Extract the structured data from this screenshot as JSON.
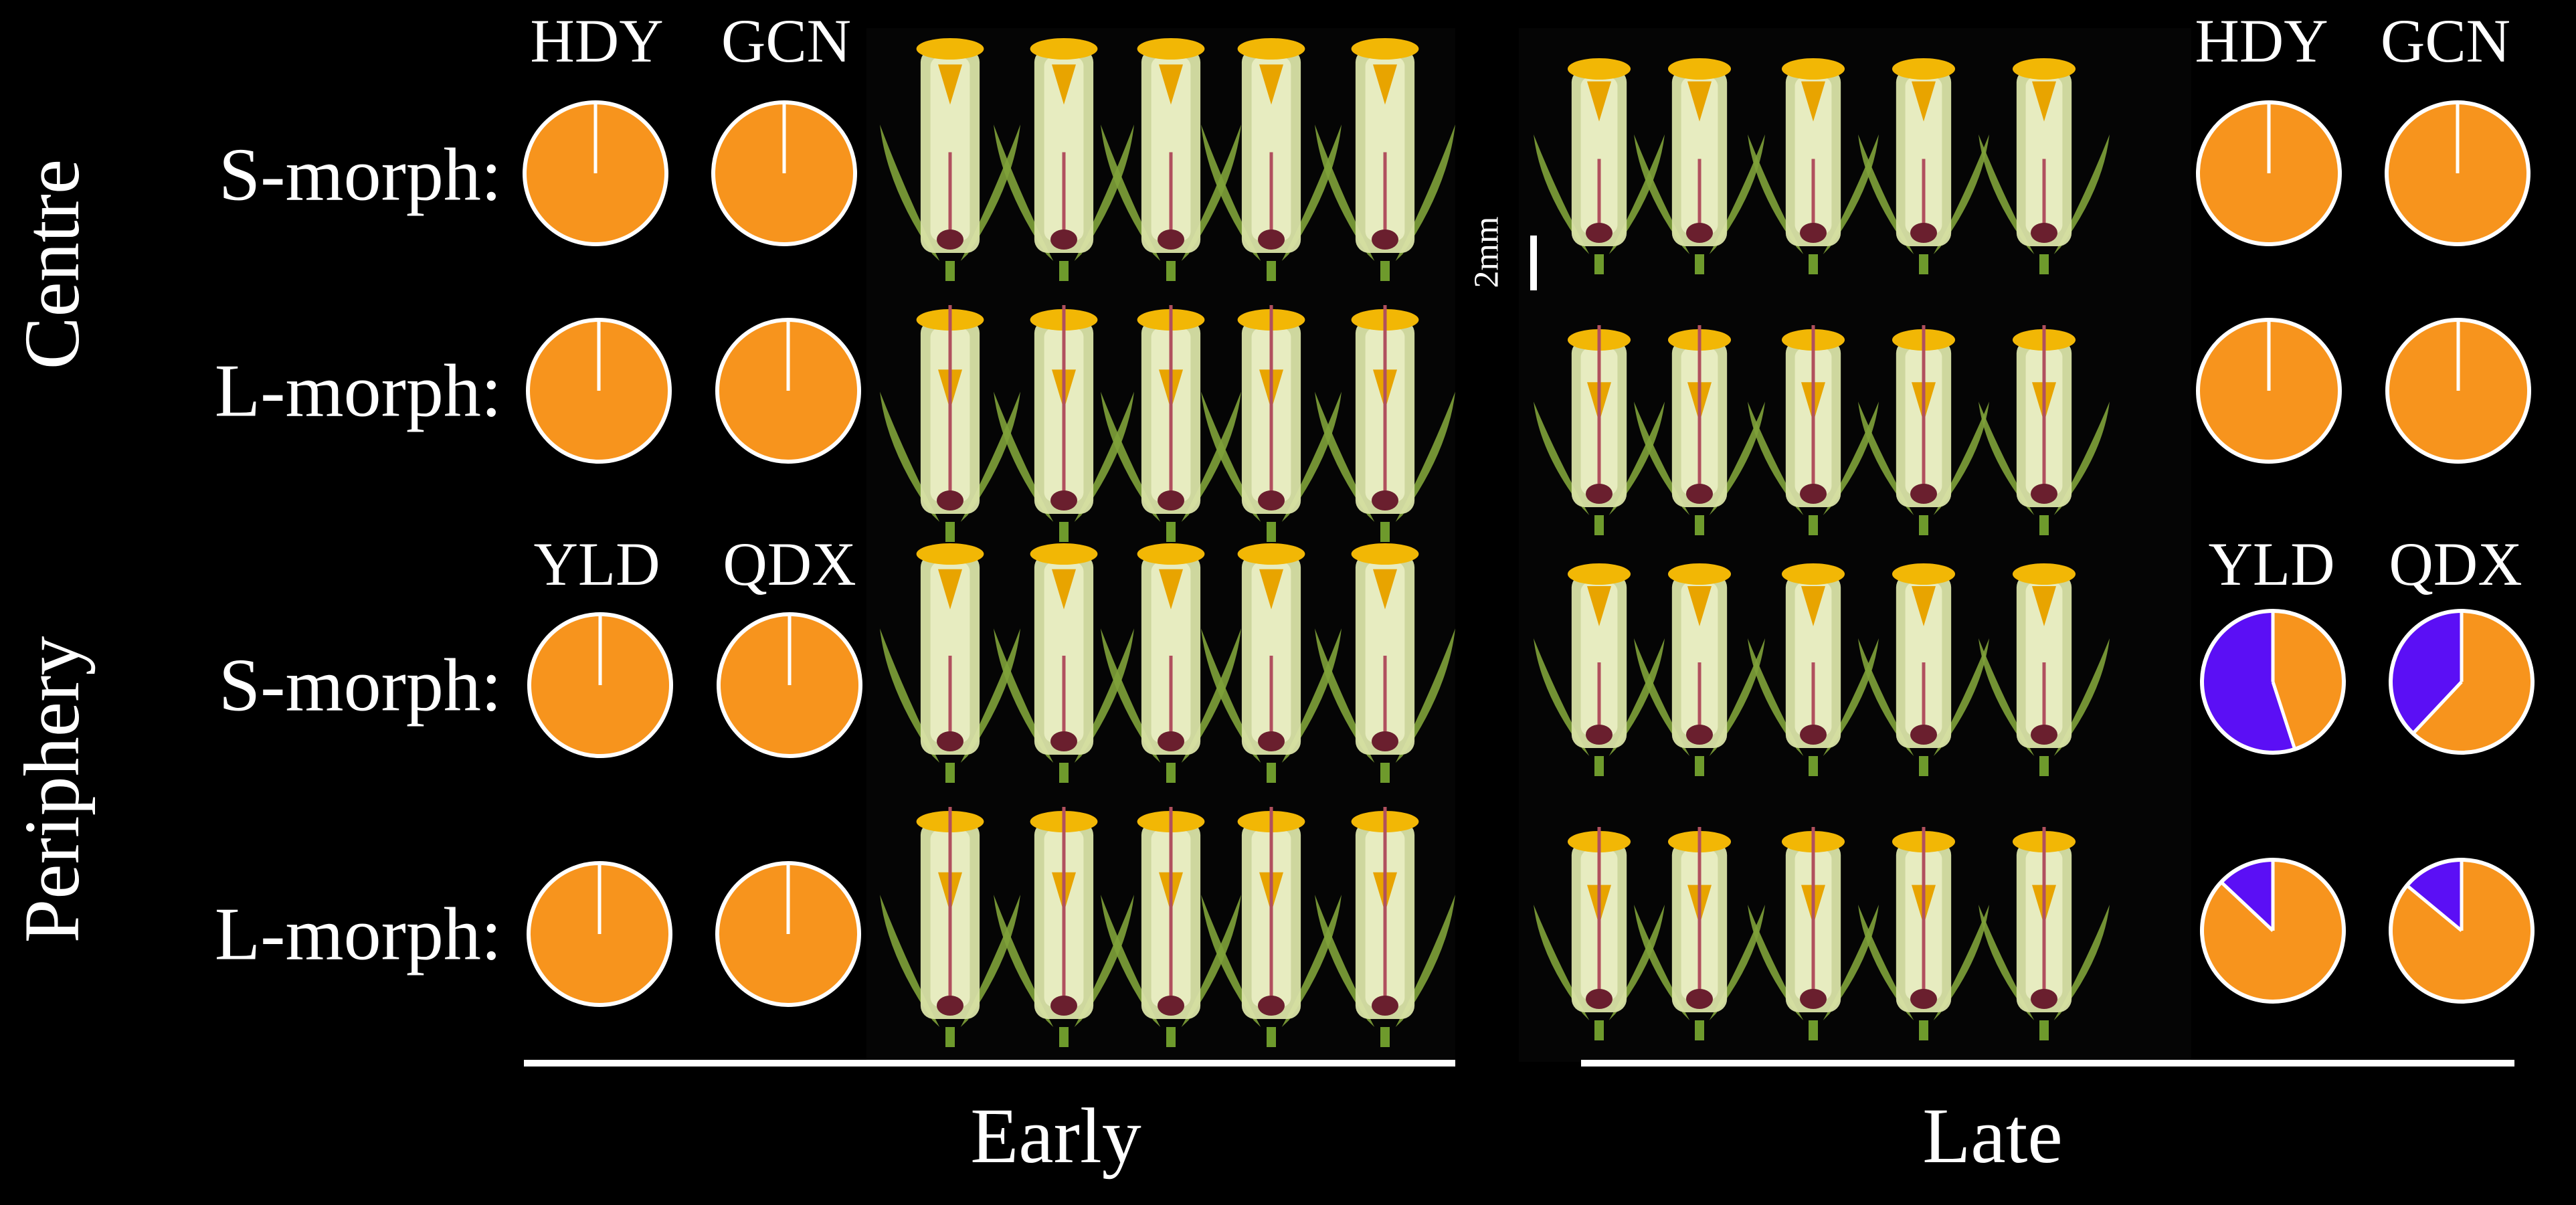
{
  "row_groups": [
    "Centre",
    "Periphery"
  ],
  "morphs": [
    "S-morph:",
    "L-morph:"
  ],
  "site_labels": {
    "centre": [
      "HDY",
      "GCN"
    ],
    "periphery": [
      "YLD",
      "QDX"
    ]
  },
  "phases": [
    "Early",
    "Late"
  ],
  "scale_label": "2mm",
  "colors": {
    "orange": "#F7941D",
    "blue": "#5B0FF5",
    "background": "#000000",
    "outline": "#FFFFFF"
  },
  "chart_data": {
    "type": "pie",
    "panels": [
      {
        "group": "Centre",
        "morph": "S-morph:",
        "phase": "Early",
        "site": "HDY",
        "values": [
          1.0,
          0.0
        ]
      },
      {
        "group": "Centre",
        "morph": "S-morph:",
        "phase": "Early",
        "site": "GCN",
        "values": [
          1.0,
          0.0
        ]
      },
      {
        "group": "Centre",
        "morph": "L-morph:",
        "phase": "Early",
        "site": "HDY",
        "values": [
          1.0,
          0.0
        ]
      },
      {
        "group": "Centre",
        "morph": "L-morph:",
        "phase": "Early",
        "site": "GCN",
        "values": [
          1.0,
          0.0
        ]
      },
      {
        "group": "Periphery",
        "morph": "S-morph:",
        "phase": "Early",
        "site": "YLD",
        "values": [
          1.0,
          0.0
        ]
      },
      {
        "group": "Periphery",
        "morph": "S-morph:",
        "phase": "Early",
        "site": "QDX",
        "values": [
          1.0,
          0.0
        ]
      },
      {
        "group": "Periphery",
        "morph": "L-morph:",
        "phase": "Early",
        "site": "YLD",
        "values": [
          1.0,
          0.0
        ]
      },
      {
        "group": "Periphery",
        "morph": "L-morph:",
        "phase": "Early",
        "site": "QDX",
        "values": [
          1.0,
          0.0
        ]
      },
      {
        "group": "Centre",
        "morph": "S-morph:",
        "phase": "Late",
        "site": "HDY",
        "values": [
          1.0,
          0.0
        ]
      },
      {
        "group": "Centre",
        "morph": "S-morph:",
        "phase": "Late",
        "site": "GCN",
        "values": [
          1.0,
          0.0
        ]
      },
      {
        "group": "Centre",
        "morph": "L-morph:",
        "phase": "Late",
        "site": "HDY",
        "values": [
          1.0,
          0.0
        ]
      },
      {
        "group": "Centre",
        "morph": "L-morph:",
        "phase": "Late",
        "site": "GCN",
        "values": [
          1.0,
          0.0
        ]
      },
      {
        "group": "Periphery",
        "morph": "S-morph:",
        "phase": "Late",
        "site": "YLD",
        "values": [
          0.45,
          0.55
        ]
      },
      {
        "group": "Periphery",
        "morph": "S-morph:",
        "phase": "Late",
        "site": "QDX",
        "values": [
          0.62,
          0.38
        ]
      },
      {
        "group": "Periphery",
        "morph": "L-morph:",
        "phase": "Late",
        "site": "YLD",
        "values": [
          0.87,
          0.13
        ]
      },
      {
        "group": "Periphery",
        "morph": "L-morph:",
        "phase": "Late",
        "site": "QDX",
        "values": [
          0.86,
          0.14
        ]
      }
    ]
  }
}
